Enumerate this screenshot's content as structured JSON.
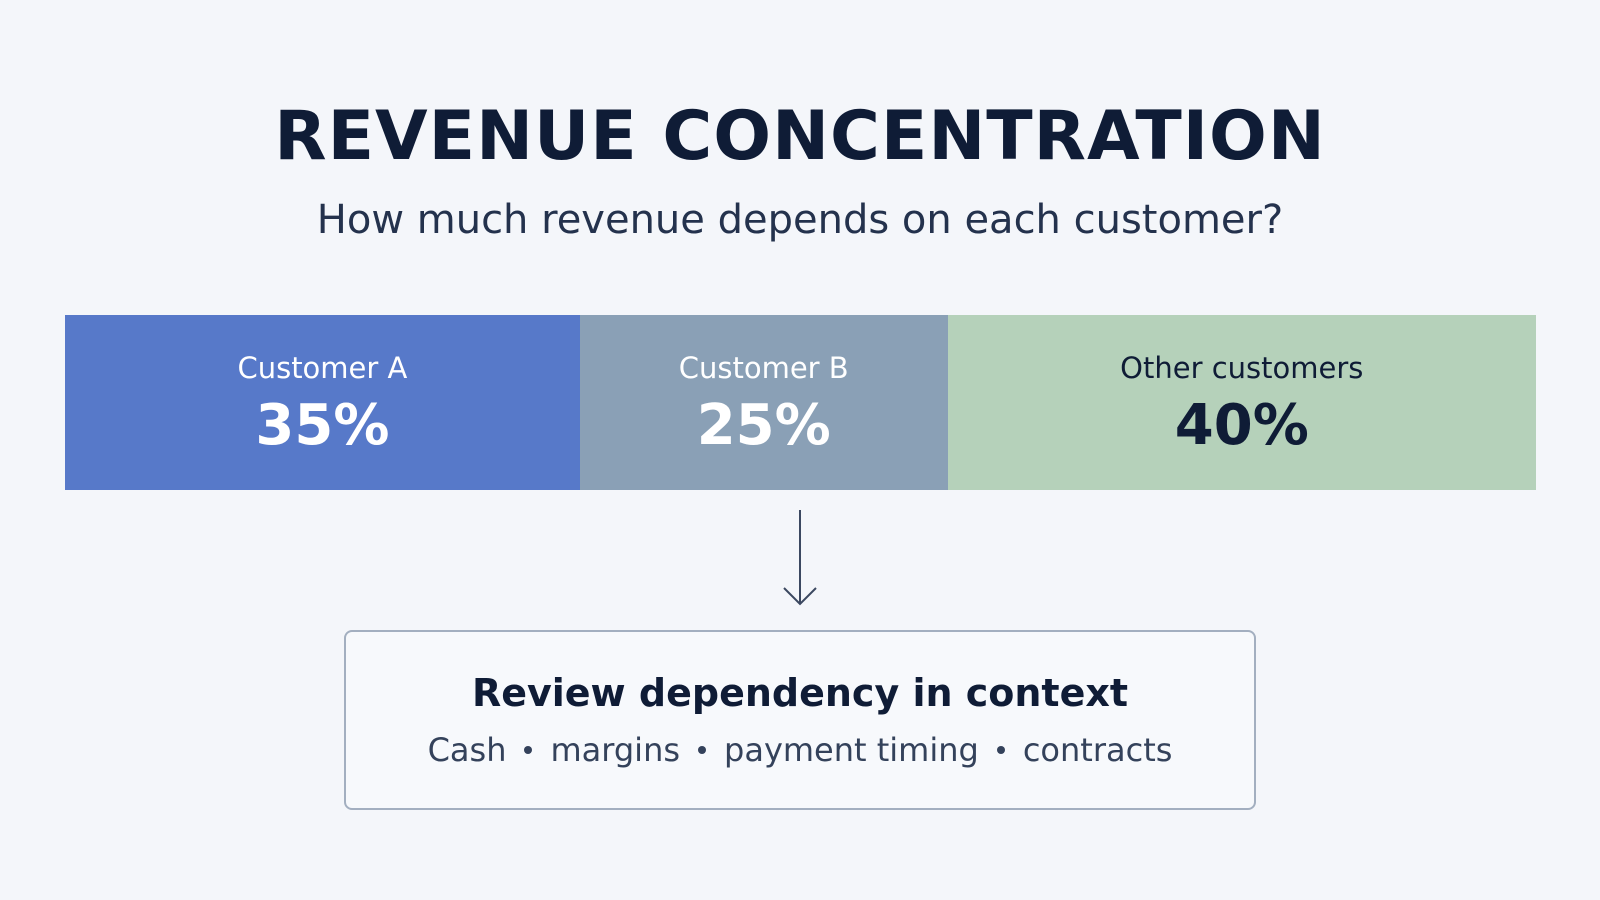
{
  "title": "REVENUE CONCENTRATION",
  "subtitle": "How much revenue depends on each customer?",
  "chart_data": {
    "type": "bar",
    "orientation": "horizontal-stacked",
    "unit": "%",
    "categories": [
      "Customer A",
      "Customer B",
      "Other customers"
    ],
    "values": [
      35,
      25,
      40
    ],
    "value_labels": [
      "35%",
      "25%",
      "40%"
    ],
    "colors": [
      "#5779c9",
      "#8aa0b6",
      "#b5d1ba"
    ],
    "label_colors": [
      "#ffffff",
      "#ffffff",
      "#0f1c36"
    ],
    "legend": "none",
    "grid": false
  },
  "context": {
    "heading": "Review dependency in context",
    "items": [
      "Cash",
      "margins",
      "payment timing",
      "contracts"
    ]
  },
  "icons": {
    "arrow": "arrow-down-icon",
    "separator": "bullet-separator"
  }
}
